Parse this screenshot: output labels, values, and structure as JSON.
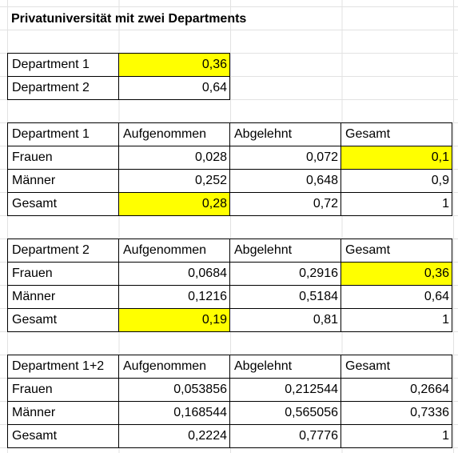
{
  "title": "Privatuniversität mit zwei Departments",
  "colors": {
    "highlight": "#ffff00",
    "border": "#000000",
    "gridline": "#e2e2e2"
  },
  "shares": {
    "rows": [
      [
        "Department 1",
        "0,36"
      ],
      [
        "Department 2",
        "0,64"
      ]
    ]
  },
  "dept1": {
    "header": [
      "Department 1",
      "Aufgenommen",
      "Abgelehnt",
      "Gesamt"
    ],
    "rows": [
      [
        "Frauen",
        "0,028",
        "0,072",
        "0,1"
      ],
      [
        "Männer",
        "0,252",
        "0,648",
        "0,9"
      ],
      [
        "Gesamt",
        "0,28",
        "0,72",
        "1"
      ]
    ]
  },
  "dept2": {
    "header": [
      "Department 2",
      "Aufgenommen",
      "Abgelehnt",
      "Gesamt"
    ],
    "rows": [
      [
        "Frauen",
        "0,0684",
        "0,2916",
        "0,36"
      ],
      [
        "Männer",
        "0,1216",
        "0,5184",
        "0,64"
      ],
      [
        "Gesamt",
        "0,19",
        "0,81",
        "1"
      ]
    ]
  },
  "dept12": {
    "header": [
      "Department 1+2",
      "Aufgenommen",
      "Abgelehnt",
      "Gesamt"
    ],
    "rows": [
      [
        "Frauen",
        "0,053856",
        "0,212544",
        "0,2664"
      ],
      [
        "Männer",
        "0,168544",
        "0,565056",
        "0,7336"
      ],
      [
        "Gesamt",
        "0,2224",
        "0,7776",
        "1"
      ]
    ]
  }
}
